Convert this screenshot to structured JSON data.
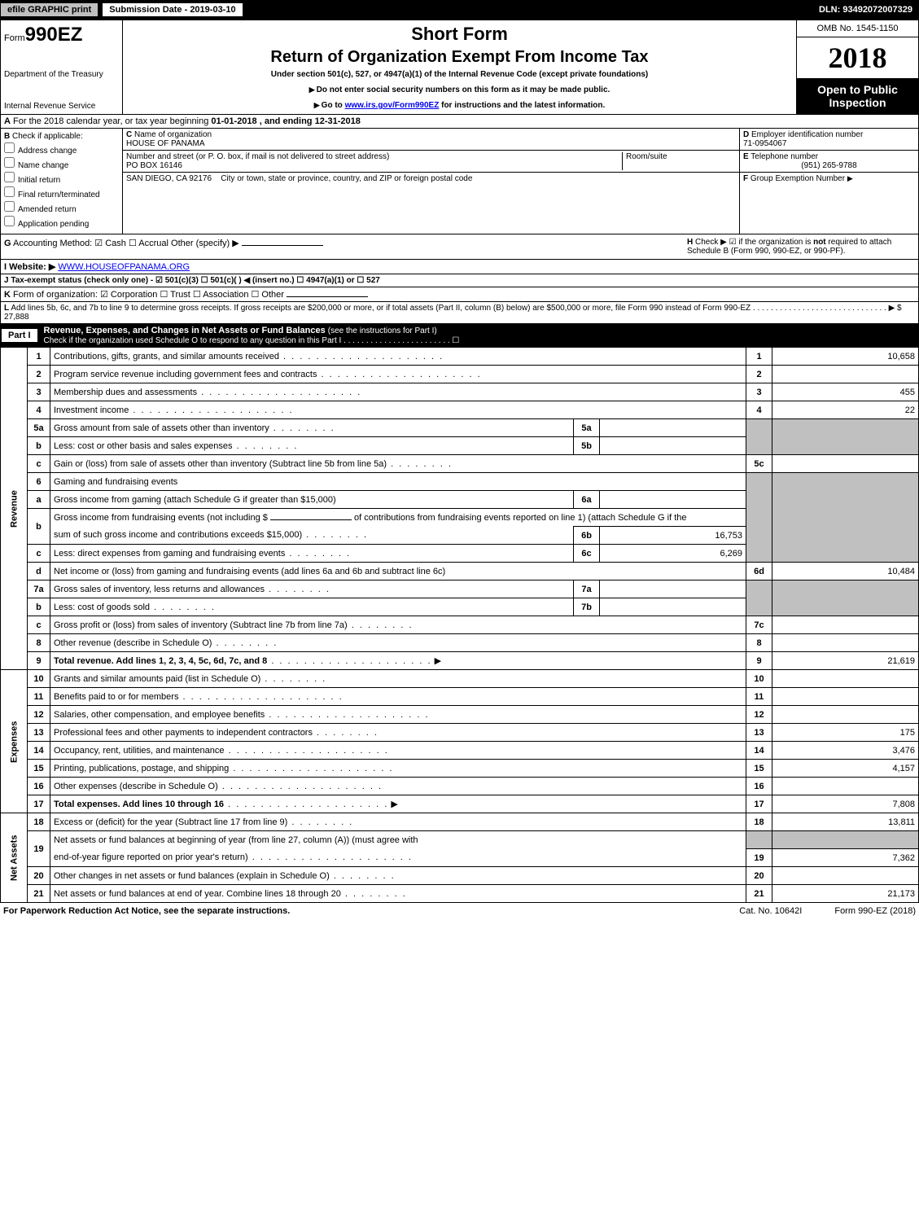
{
  "topbar": {
    "efile": "efile GRAPHIC print",
    "submission": "Submission Date - 2019-03-10",
    "dln": "DLN: 93492072007329"
  },
  "header": {
    "form_prefix": "Form",
    "form_number": "990EZ",
    "dept1": "Department of the Treasury",
    "dept2": "Internal Revenue Service",
    "short_form": "Short Form",
    "title": "Return of Organization Exempt From Income Tax",
    "under_section": "Under section 501(c), 527, or 4947(a)(1) of the Internal Revenue Code (except private foundations)",
    "notice1": "Do not enter social security numbers on this form as it may be made public.",
    "notice2_prefix": "Go to ",
    "notice2_link": "www.irs.gov/Form990EZ",
    "notice2_suffix": " for instructions and the latest information.",
    "omb": "OMB No. 1545-1150",
    "year": "2018",
    "open_public1": "Open to Public",
    "open_public2": "Inspection"
  },
  "row_A": {
    "label": "A",
    "text1": "For the 2018 calendar year, or tax year beginning ",
    "begin": "01-01-2018",
    "text2": ", and ending ",
    "end": "12-31-2018"
  },
  "section_B": {
    "label": "B",
    "heading": "Check if applicable:",
    "opts": [
      "Address change",
      "Name change",
      "Initial return",
      "Final return/terminated",
      "Amended return",
      "Application pending"
    ]
  },
  "section_C": {
    "c_label": "C",
    "c_heading": "Name of organization",
    "org_name": "HOUSE OF PANAMA",
    "addr_heading": "Number and street (or P. O. box, if mail is not delivered to street address)",
    "addr": "PO BOX 16146",
    "room_heading": "Room/suite",
    "city_line": "SAN DIEGO, CA  92176",
    "city_heading": "City or town, state or province, country, and ZIP or foreign postal code"
  },
  "section_D": {
    "d_label": "D",
    "d_heading": "Employer identification number",
    "ein": "71-0954067",
    "e_label": "E",
    "e_heading": "Telephone number",
    "phone": "(951) 265-9788",
    "f_label": "F",
    "f_heading": "Group Exemption Number"
  },
  "row_G": {
    "label": "G",
    "text": "Accounting Method:",
    "opts": [
      "Cash",
      "Accrual"
    ],
    "other": "Other (specify) ▶"
  },
  "row_H": {
    "label": "H",
    "text1": "Check ▶",
    "text2": "if the organization is ",
    "not": "not",
    "text3": " required to attach Schedule B (Form 990, 990-EZ, or 990-PF)."
  },
  "row_I": {
    "label": "I",
    "heading": "Website: ▶",
    "url": "WWW.HOUSEOFPANAMA.ORG"
  },
  "row_J": {
    "label": "J",
    "text": "Tax-exempt status (check only one) - ☑ 501(c)(3) ☐ 501(c)(  ) ◀ (insert no.) ☐ 4947(a)(1) or ☐ 527"
  },
  "row_K": {
    "label": "K",
    "text": "Form of organization: ☑ Corporation  ☐ Trust  ☐ Association  ☐ Other"
  },
  "row_L": {
    "label": "L",
    "text": "Add lines 5b, 6c, and 7b to line 9 to determine gross receipts. If gross receipts are $200,000 or more, or if total assets (Part II, column (B) below) are $500,000 or more, file Form 990 instead of Form 990-EZ . . . . . . . . . . . . . . . . . . . . . . . . . . . . . . ▶ $ 27,888"
  },
  "part1": {
    "label": "Part I",
    "title": "Revenue, Expenses, and Changes in Net Assets or Fund Balances ",
    "subtitle": "(see the instructions for Part I)",
    "check_line": "Check if the organization used Schedule O to respond to any question in this Part I . . . . . . . . . . . . . . . . . . . . . . . . ☐"
  },
  "sections": {
    "revenue": "Revenue",
    "expenses": "Expenses",
    "netassets": "Net Assets"
  },
  "lines": {
    "1": {
      "desc": "Contributions, gifts, grants, and similar amounts received",
      "val": "10,658"
    },
    "2": {
      "desc": "Program service revenue including government fees and contracts",
      "val": ""
    },
    "3": {
      "desc": "Membership dues and assessments",
      "val": "455"
    },
    "4": {
      "desc": "Investment income",
      "val": "22"
    },
    "5a": {
      "desc": "Gross amount from sale of assets other than inventory",
      "mid": ""
    },
    "5b": {
      "desc": "Less: cost or other basis and sales expenses",
      "mid": ""
    },
    "5c": {
      "desc": "Gain or (loss) from sale of assets other than inventory (Subtract line 5b from line 5a)",
      "val": ""
    },
    "6": {
      "desc": "Gaming and fundraising events"
    },
    "6a": {
      "desc": "Gross income from gaming (attach Schedule G if greater than $15,000)",
      "mid": ""
    },
    "6b_pre": {
      "desc1": "Gross income from fundraising events (not including $ ",
      "desc2": " of contributions from fundraising events reported on line 1) (attach Schedule G if the"
    },
    "6b": {
      "desc": "sum of such gross income and contributions exceeds $15,000)",
      "mid": "16,753"
    },
    "6c": {
      "desc": "Less: direct expenses from gaming and fundraising events",
      "mid": "6,269"
    },
    "6d": {
      "desc": "Net income or (loss) from gaming and fundraising events (add lines 6a and 6b and subtract line 6c)",
      "val": "10,484"
    },
    "7a": {
      "desc": "Gross sales of inventory, less returns and allowances",
      "mid": ""
    },
    "7b": {
      "desc": "Less: cost of goods sold",
      "mid": ""
    },
    "7c": {
      "desc": "Gross profit or (loss) from sales of inventory (Subtract line 7b from line 7a)",
      "val": ""
    },
    "8": {
      "desc": "Other revenue (describe in Schedule O)",
      "val": ""
    },
    "9": {
      "desc": "Total revenue. Add lines 1, 2, 3, 4, 5c, 6d, 7c, and 8",
      "val": "21,619"
    },
    "10": {
      "desc": "Grants and similar amounts paid (list in Schedule O)",
      "val": ""
    },
    "11": {
      "desc": "Benefits paid to or for members",
      "val": ""
    },
    "12": {
      "desc": "Salaries, other compensation, and employee benefits",
      "val": ""
    },
    "13": {
      "desc": "Professional fees and other payments to independent contractors",
      "val": "175"
    },
    "14": {
      "desc": "Occupancy, rent, utilities, and maintenance",
      "val": "3,476"
    },
    "15": {
      "desc": "Printing, publications, postage, and shipping",
      "val": "4,157"
    },
    "16": {
      "desc": "Other expenses (describe in Schedule O)",
      "val": ""
    },
    "17": {
      "desc": "Total expenses. Add lines 10 through 16",
      "val": "7,808"
    },
    "18": {
      "desc": "Excess or (deficit) for the year (Subtract line 17 from line 9)",
      "val": "13,811"
    },
    "19a": {
      "desc": "Net assets or fund balances at beginning of year (from line 27, column (A)) (must agree with"
    },
    "19": {
      "desc": "end-of-year figure reported on prior year's return)",
      "val": "7,362"
    },
    "20": {
      "desc": "Other changes in net assets or fund balances (explain in Schedule O)",
      "val": ""
    },
    "21": {
      "desc": "Net assets or fund balances at end of year. Combine lines 18 through 20",
      "val": "21,173"
    }
  },
  "footer": {
    "left": "For Paperwork Reduction Act Notice, see the separate instructions.",
    "mid": "Cat. No. 10642I",
    "right": "Form 990-EZ (2018)"
  }
}
